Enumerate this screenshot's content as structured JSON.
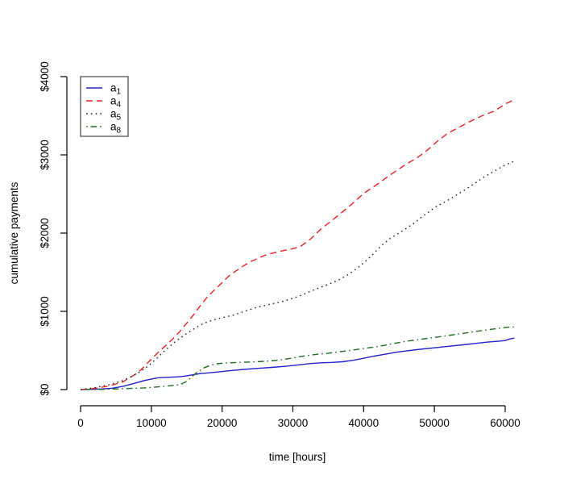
{
  "chart_data": {
    "type": "line",
    "title": "",
    "xlabel": "time [hours]",
    "ylabel": "cumulative payments",
    "xlim": [
      0,
      61300
    ],
    "ylim": [
      0,
      4000
    ],
    "grid": false,
    "legend_position": "top-left",
    "axis_color": "#000000",
    "x_ticks": [
      {
        "value": 0,
        "label": "0"
      },
      {
        "value": 10000,
        "label": "10000"
      },
      {
        "value": 20000,
        "label": "20000"
      },
      {
        "value": 30000,
        "label": "30000"
      },
      {
        "value": 40000,
        "label": "40000"
      },
      {
        "value": 50000,
        "label": "50000"
      },
      {
        "value": 60000,
        "label": "60000"
      }
    ],
    "y_ticks": [
      {
        "value": 0,
        "label": "$0"
      },
      {
        "value": 1000,
        "label": "$1000"
      },
      {
        "value": 2000,
        "label": "$2000"
      },
      {
        "value": 3000,
        "label": "$3000"
      },
      {
        "value": 4000,
        "label": "$4000"
      }
    ],
    "series": [
      {
        "id": "a1",
        "label_base": "a",
        "label_sub": "1",
        "color": "#2222cc",
        "linetype": "solid",
        "points": [
          [
            0,
            0
          ],
          [
            1500,
            3
          ],
          [
            3000,
            8
          ],
          [
            4500,
            18
          ],
          [
            6000,
            42
          ],
          [
            7500,
            78
          ],
          [
            9000,
            115
          ],
          [
            10000,
            135
          ],
          [
            11000,
            152
          ],
          [
            12500,
            158
          ],
          [
            14000,
            164
          ],
          [
            15000,
            176
          ],
          [
            16000,
            192
          ],
          [
            17000,
            205
          ],
          [
            18000,
            213
          ],
          [
            19500,
            226
          ],
          [
            21000,
            240
          ],
          [
            23000,
            258
          ],
          [
            25000,
            271
          ],
          [
            27000,
            284
          ],
          [
            29000,
            298
          ],
          [
            31000,
            318
          ],
          [
            32500,
            333
          ],
          [
            34000,
            342
          ],
          [
            35500,
            347
          ],
          [
            37000,
            356
          ],
          [
            38500,
            374
          ],
          [
            40000,
            400
          ],
          [
            41500,
            428
          ],
          [
            43000,
            452
          ],
          [
            44500,
            476
          ],
          [
            46000,
            494
          ],
          [
            48000,
            515
          ],
          [
            50000,
            534
          ],
          [
            52000,
            554
          ],
          [
            54000,
            572
          ],
          [
            56000,
            592
          ],
          [
            57500,
            607
          ],
          [
            59000,
            618
          ],
          [
            60000,
            627
          ],
          [
            60600,
            646
          ],
          [
            61300,
            658
          ]
        ]
      },
      {
        "id": "a4",
        "label_base": "a",
        "label_sub": "4",
        "color": "#ee2222",
        "linetype": "dashed",
        "points": [
          [
            0,
            0
          ],
          [
            2000,
            15
          ],
          [
            4000,
            45
          ],
          [
            6000,
            100
          ],
          [
            8000,
            210
          ],
          [
            9000,
            295
          ],
          [
            10000,
            390
          ],
          [
            11000,
            478
          ],
          [
            12000,
            560
          ],
          [
            13000,
            645
          ],
          [
            14000,
            740
          ],
          [
            15000,
            850
          ],
          [
            16000,
            960
          ],
          [
            17000,
            1080
          ],
          [
            18000,
            1195
          ],
          [
            19350,
            1310
          ],
          [
            21000,
            1455
          ],
          [
            22800,
            1570
          ],
          [
            24000,
            1635
          ],
          [
            26000,
            1715
          ],
          [
            28000,
            1765
          ],
          [
            29500,
            1790
          ],
          [
            31000,
            1825
          ],
          [
            32500,
            1925
          ],
          [
            34000,
            2055
          ],
          [
            35500,
            2160
          ],
          [
            37000,
            2270
          ],
          [
            38500,
            2385
          ],
          [
            40000,
            2505
          ],
          [
            42000,
            2630
          ],
          [
            44000,
            2760
          ],
          [
            46000,
            2880
          ],
          [
            47500,
            2960
          ],
          [
            49000,
            3060
          ],
          [
            50500,
            3180
          ],
          [
            51800,
            3270
          ],
          [
            53000,
            3330
          ],
          [
            55000,
            3425
          ],
          [
            57000,
            3510
          ],
          [
            58500,
            3560
          ],
          [
            60000,
            3650
          ],
          [
            61300,
            3705
          ]
        ]
      },
      {
        "id": "a5",
        "label_base": "a",
        "label_sub": "5",
        "color": "#20202a",
        "linetype": "dotted",
        "points": [
          [
            0,
            0
          ],
          [
            2000,
            25
          ],
          [
            4000,
            62
          ],
          [
            6000,
            115
          ],
          [
            8000,
            205
          ],
          [
            9000,
            265
          ],
          [
            10000,
            335
          ],
          [
            11000,
            420
          ],
          [
            12000,
            505
          ],
          [
            13000,
            585
          ],
          [
            14000,
            655
          ],
          [
            15000,
            718
          ],
          [
            16000,
            775
          ],
          [
            17000,
            828
          ],
          [
            18000,
            868
          ],
          [
            19350,
            905
          ],
          [
            21600,
            952
          ],
          [
            23500,
            1010
          ],
          [
            25050,
            1055
          ],
          [
            27000,
            1095
          ],
          [
            28500,
            1125
          ],
          [
            30750,
            1190
          ],
          [
            33000,
            1275
          ],
          [
            35000,
            1345
          ],
          [
            36450,
            1400
          ],
          [
            38000,
            1480
          ],
          [
            39500,
            1580
          ],
          [
            41000,
            1700
          ],
          [
            42500,
            1840
          ],
          [
            43800,
            1935
          ],
          [
            45000,
            2000
          ],
          [
            47000,
            2120
          ],
          [
            48500,
            2225
          ],
          [
            50100,
            2330
          ],
          [
            52000,
            2425
          ],
          [
            54000,
            2535
          ],
          [
            56000,
            2655
          ],
          [
            57000,
            2715
          ],
          [
            58500,
            2795
          ],
          [
            60000,
            2870
          ],
          [
            61300,
            2920
          ]
        ]
      },
      {
        "id": "a8",
        "label_base": "a",
        "label_sub": "8",
        "color": "#1e6b1e",
        "linetype": "dashdot",
        "points": [
          [
            0,
            0
          ],
          [
            3000,
            3
          ],
          [
            5000,
            8
          ],
          [
            7000,
            14
          ],
          [
            9000,
            22
          ],
          [
            11000,
            35
          ],
          [
            12500,
            48
          ],
          [
            14000,
            62
          ],
          [
            15000,
            105
          ],
          [
            15800,
            170
          ],
          [
            16500,
            225
          ],
          [
            17500,
            280
          ],
          [
            18500,
            315
          ],
          [
            19350,
            332
          ],
          [
            21000,
            342
          ],
          [
            23000,
            350
          ],
          [
            25000,
            357
          ],
          [
            26760,
            365
          ],
          [
            28500,
            382
          ],
          [
            30000,
            405
          ],
          [
            31890,
            434
          ],
          [
            33500,
            452
          ],
          [
            35000,
            465
          ],
          [
            36500,
            482
          ],
          [
            38000,
            500
          ],
          [
            40000,
            525
          ],
          [
            42000,
            550
          ],
          [
            44400,
            592
          ],
          [
            46000,
            618
          ],
          [
            47500,
            635
          ],
          [
            49000,
            655
          ],
          [
            50500,
            672
          ],
          [
            52000,
            693
          ],
          [
            54000,
            718
          ],
          [
            56000,
            745
          ],
          [
            58000,
            770
          ],
          [
            59500,
            788
          ],
          [
            60300,
            797
          ],
          [
            61300,
            801
          ]
        ]
      }
    ]
  }
}
